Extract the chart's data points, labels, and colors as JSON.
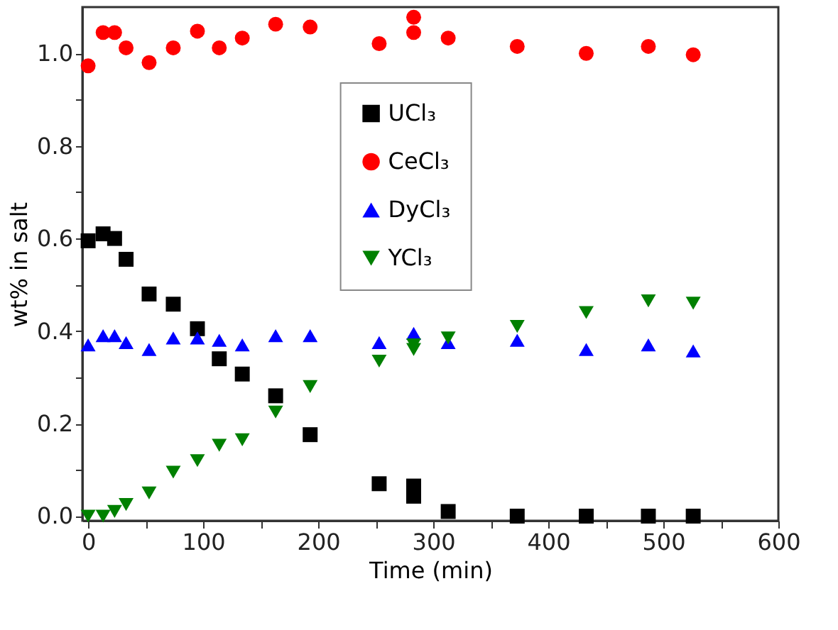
{
  "chart_data": {
    "type": "scatter",
    "xlabel": "Time (min)",
    "ylabel": "wt% in salt",
    "xlim": [
      -5,
      600
    ],
    "ylim": [
      -0.01,
      1.1
    ],
    "xticks": [
      0,
      {
        "value": 50,
        "label": null
      },
      100,
      {
        "value": 150,
        "label": null
      },
      200,
      {
        "value": 250,
        "label": null
      },
      300,
      {
        "value": 350,
        "label": null
      },
      400,
      {
        "value": 450,
        "label": null
      },
      500,
      {
        "value": 550,
        "label": null
      },
      600
    ],
    "yticks": [
      {
        "value": 0,
        "label": "0.0"
      },
      {
        "value": 0.1,
        "label": null
      },
      {
        "value": 0.2,
        "label": "0.2"
      },
      {
        "value": 0.3,
        "label": null
      },
      {
        "value": 0.4,
        "label": "0.4"
      },
      {
        "value": 0.5,
        "label": null
      },
      {
        "value": 0.6,
        "label": "0.6"
      },
      {
        "value": 0.7,
        "label": null
      },
      {
        "value": 0.8,
        "label": "0.8"
      },
      {
        "value": 0.9,
        "label": null
      },
      {
        "value": 1.0,
        "label": "1.0"
      }
    ],
    "x": [
      0,
      13,
      23,
      33,
      53,
      74,
      95,
      114,
      134,
      163,
      193,
      253,
      283,
      283,
      313,
      373,
      433,
      487,
      526
    ],
    "series": [
      {
        "name": "UCl₃",
        "color": "#000000",
        "marker": "square",
        "values": [
          0.595,
          0.61,
          0.6,
          0.555,
          0.48,
          0.458,
          0.405,
          0.34,
          0.307,
          0.26,
          0.176,
          0.07,
          0.065,
          0.043,
          0.01,
          0,
          0,
          0,
          0
        ]
      },
      {
        "name": "CeCl₃",
        "color": "#ff0000",
        "marker": "circle",
        "values": [
          0.973,
          1.045,
          1.045,
          1.012,
          0.98,
          1.012,
          1.048,
          1.012,
          1.033,
          1.063,
          1.057,
          1.021,
          1.078,
          1.045,
          1.033,
          1.015,
          1.0,
          1.015,
          0.997
        ]
      },
      {
        "name": "DyCl₃",
        "color": "#0000ff",
        "marker": "triangle",
        "values": [
          0.37,
          0.39,
          0.39,
          0.375,
          0.36,
          0.385,
          0.385,
          0.38,
          0.37,
          0.39,
          0.39,
          0.375,
          0.395,
          null,
          0.375,
          0.38,
          0.36,
          0.37,
          0.357
        ]
      },
      {
        "name": "YCl₃",
        "color": "#008000",
        "marker": "triangle-down",
        "values": [
          0,
          0,
          0.01,
          0.025,
          0.05,
          0.095,
          0.12,
          0.153,
          0.165,
          0.225,
          0.28,
          0.335,
          0.37,
          0.36,
          0.385,
          0.41,
          0.44,
          0.465,
          0.46
        ]
      }
    ],
    "legend": "top",
    "grid": false
  }
}
